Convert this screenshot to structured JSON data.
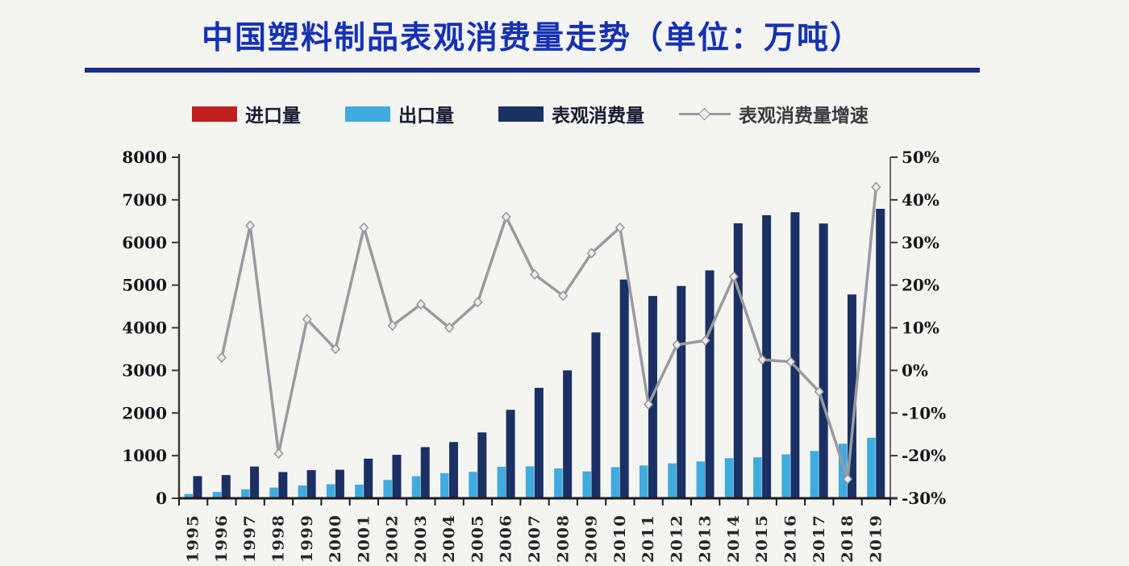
{
  "title": {
    "text": "中国塑料制品表观消费量走势（单位：万吨）"
  },
  "legend": [
    {
      "label": "进口量",
      "type": "swatch",
      "color": "#c12020"
    },
    {
      "label": "出口量",
      "type": "swatch",
      "color": "#3fabdf"
    },
    {
      "label": "表观消费量",
      "type": "swatch",
      "color": "#1b3064"
    },
    {
      "label": "表观消费量增速",
      "type": "line",
      "color": "#9a9aa0"
    }
  ],
  "chart_data": {
    "type": "combo-bar-line",
    "title": "中国塑料制品表观消费量走势（单位：万吨）",
    "legend_position": "top",
    "categories": [
      "1995",
      "1996",
      "1997",
      "1998",
      "1999",
      "2000",
      "2001",
      "2002",
      "2003",
      "2004",
      "2005",
      "2006",
      "2007",
      "2008",
      "2009",
      "2010",
      "2011",
      "2012",
      "2013",
      "2014",
      "2015",
      "2016",
      "2017",
      "2018",
      "2019"
    ],
    "left_axis": {
      "min": 0,
      "max": 8000,
      "step": 1000,
      "ticks": [
        "0",
        "1000",
        "2000",
        "3000",
        "4000",
        "5000",
        "6000",
        "7000",
        "8000"
      ]
    },
    "right_axis": {
      "min": -30,
      "max": 50,
      "step": 10,
      "suffix": "%",
      "ticks": [
        "-30%",
        "-20%",
        "-10%",
        "0%",
        "10%",
        "20%",
        "30%",
        "40%",
        "50%"
      ]
    },
    "series": [
      {
        "name": "进口量",
        "type": "bar",
        "axis": "left",
        "color": "#c12020",
        "values": [
          0,
          0,
          0,
          0,
          0,
          0,
          0,
          0,
          0,
          0,
          0,
          0,
          0,
          0,
          0,
          0,
          0,
          0,
          0,
          0,
          0,
          0,
          0,
          0,
          0
        ]
      },
      {
        "name": "出口量",
        "type": "bar",
        "axis": "left",
        "color": "#3fabdf",
        "values": [
          100,
          150,
          210,
          250,
          300,
          330,
          320,
          430,
          520,
          590,
          620,
          740,
          750,
          700,
          630,
          730,
          770,
          820,
          865,
          940,
          960,
          1030,
          1110,
          1280,
          1420
        ]
      },
      {
        "name": "表观消费量",
        "type": "bar",
        "axis": "left",
        "color": "#1b3064",
        "values": [
          520,
          545,
          745,
          615,
          660,
          670,
          930,
          1020,
          1200,
          1320,
          1545,
          2075,
          2590,
          3000,
          3890,
          5130,
          4745,
          4980,
          5345,
          6450,
          6640,
          6710,
          6445,
          4780,
          6790
        ]
      },
      {
        "name": "表观消费量增速",
        "type": "line",
        "axis": "right",
        "unit": "%",
        "color": "#9a9aa0",
        "values": [
          null,
          3,
          34,
          -19.5,
          12,
          5,
          33.5,
          10.5,
          15.5,
          10,
          16,
          36,
          22.5,
          17.5,
          27.5,
          33.5,
          -8,
          6,
          7,
          22,
          2.5,
          2,
          -5,
          -25.5,
          43
        ]
      }
    ]
  }
}
